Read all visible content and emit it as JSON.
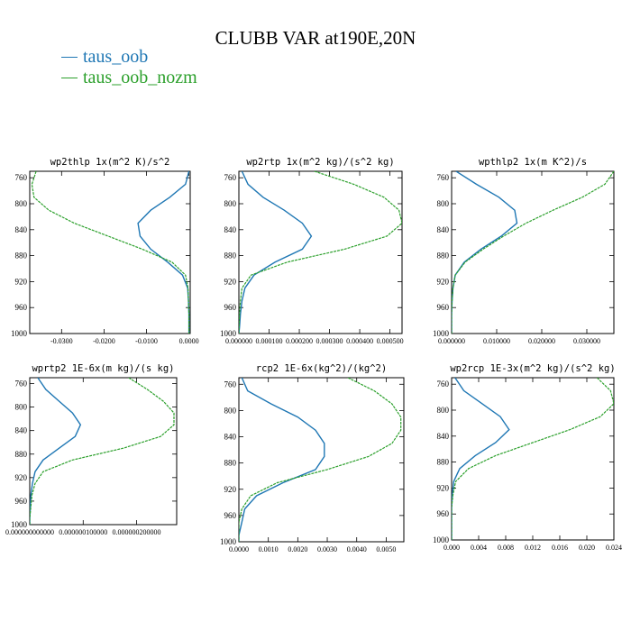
{
  "title": "CLUBB VAR at190E,20N",
  "legend": [
    {
      "label": "taus_oob",
      "color": "#1f77b4"
    },
    {
      "label": "taus_oob_nozm",
      "color": "#2ca02c"
    }
  ],
  "chart_data": [
    {
      "type": "line",
      "title": "wp2thlp   1x(m^2 K)/s^2",
      "xlim": [
        -0.0375,
        0.0003
      ],
      "ylim": [
        1000,
        750
      ],
      "yticks": [
        "760",
        "800",
        "840",
        "880",
        "920",
        "960",
        "1000"
      ],
      "xticks": [
        -0.03,
        -0.02,
        -0.01,
        0.0
      ],
      "xtick_labels": [
        "-0.0300",
        "-0.0200",
        "-0.0100",
        "0.0000"
      ],
      "y": [
        750,
        770,
        790,
        810,
        830,
        850,
        870,
        890,
        910,
        930,
        950,
        970,
        990,
        1000
      ],
      "series": [
        {
          "name": "taus_oob",
          "color": "#1f77b4",
          "values": [
            0.0,
            -0.0008,
            -0.0045,
            -0.009,
            -0.012,
            -0.0115,
            -0.009,
            -0.005,
            -0.0015,
            -0.0003,
            -0.0001,
            0.0,
            0.0,
            0.0
          ]
        },
        {
          "name": "taus_oob_nozm",
          "color": "#2ca02c",
          "values": [
            -0.036,
            -0.037,
            -0.0365,
            -0.033,
            -0.027,
            -0.019,
            -0.011,
            -0.004,
            -0.0008,
            -0.0002,
            -0.0001,
            0.0,
            0.0,
            0.0
          ]
        }
      ]
    },
    {
      "type": "line",
      "title": "wp2rtp  1x(m^2 kg)/(s^2 kg)",
      "xlim": [
        0,
        0.00054
      ],
      "ylim": [
        1000,
        750
      ],
      "yticks": [
        "760",
        "800",
        "840",
        "880",
        "920",
        "960",
        "1000"
      ],
      "xticks": [
        0,
        0.0001,
        0.0002,
        0.0003,
        0.0004,
        0.0005
      ],
      "xtick_labels": [
        "0.000000",
        "0.000100",
        "0.000200",
        "0.000300",
        "0.000400",
        "0.000500"
      ],
      "y": [
        750,
        770,
        790,
        810,
        830,
        850,
        870,
        890,
        910,
        930,
        950,
        970,
        990,
        1000
      ],
      "series": [
        {
          "name": "taus_oob",
          "color": "#1f77b4",
          "values": [
            1e-05,
            3e-05,
            8e-05,
            0.00015,
            0.00021,
            0.00024,
            0.00021,
            0.00012,
            5e-05,
            2e-05,
            1e-05,
            5e-06,
            2e-06,
            0.0
          ]
        },
        {
          "name": "taus_oob_nozm",
          "color": "#2ca02c",
          "values": [
            0.00025,
            0.00038,
            0.00048,
            0.00053,
            0.00054,
            0.00049,
            0.00035,
            0.00016,
            4e-05,
            1e-05,
            5e-06,
            2e-06,
            1e-06,
            0.0
          ]
        }
      ]
    },
    {
      "type": "line",
      "title": "wpthlp2  1x(m K^2)/s",
      "xlim": [
        0,
        0.036
      ],
      "ylim": [
        1000,
        750
      ],
      "yticks": [
        "760",
        "800",
        "840",
        "880",
        "920",
        "960",
        "1000"
      ],
      "xticks": [
        0,
        0.01,
        0.02,
        0.03
      ],
      "xtick_labels": [
        "0.000000",
        "0.010000",
        "0.020000",
        "0.030000"
      ],
      "y": [
        750,
        770,
        790,
        810,
        830,
        850,
        870,
        890,
        910,
        930,
        950,
        970,
        990,
        1000
      ],
      "series": [
        {
          "name": "taus_oob",
          "color": "#1f77b4",
          "values": [
            0.001,
            0.0055,
            0.0105,
            0.014,
            0.0145,
            0.011,
            0.0065,
            0.0028,
            0.0008,
            0.0003,
            0.0001,
            0.0,
            0.0,
            0.0
          ]
        },
        {
          "name": "taus_oob_nozm",
          "color": "#2ca02c",
          "values": [
            0.036,
            0.034,
            0.029,
            0.0225,
            0.0165,
            0.0115,
            0.007,
            0.003,
            0.0008,
            0.0003,
            0.0001,
            0.0,
            0.0,
            0.0
          ]
        }
      ]
    },
    {
      "type": "line",
      "title": "wprtp2  1E-6x(m kg)/(s kg)",
      "xlim": [
        0,
        2.75e-07
      ],
      "ylim": [
        1000,
        750
      ],
      "yticks": [
        "760",
        "800",
        "840",
        "880",
        "920",
        "960",
        "1000"
      ],
      "xticks": [
        0,
        1e-07,
        2e-07
      ],
      "xtick_labels": [
        "0.000000000000",
        "0.000000100000",
        "0.000000200000"
      ],
      "y": [
        750,
        770,
        790,
        810,
        830,
        850,
        870,
        890,
        910,
        930,
        950,
        970,
        990,
        1000
      ],
      "series": [
        {
          "name": "taus_oob",
          "color": "#1f77b4",
          "values": [
            1.5e-08,
            3e-08,
            5.5e-08,
            8e-08,
            9.5e-08,
            8.5e-08,
            5.5e-08,
            2.5e-08,
            1e-08,
            5e-09,
            2e-09,
            1e-09,
            0.0,
            0.0
          ]
        },
        {
          "name": "taus_oob_nozm",
          "color": "#2ca02c",
          "values": [
            1.85e-07,
            2.2e-07,
            2.5e-07,
            2.7e-07,
            2.7e-07,
            2.45e-07,
            1.75e-07,
            8e-08,
            2.5e-08,
            1e-08,
            4e-09,
            2e-09,
            0.0,
            0.0
          ]
        }
      ]
    },
    {
      "type": "line",
      "title": "rcp2  1E-6x(kg^2)/(kg^2)",
      "xlim": [
        0,
        0.0056
      ],
      "ylim": [
        1000,
        750
      ],
      "yticks": [
        "760",
        "800",
        "840",
        "880",
        "920",
        "960",
        "1000"
      ],
      "xticks": [
        0,
        0.001,
        0.002,
        0.003,
        0.004,
        0.005
      ],
      "xtick_labels": [
        "0.0000",
        "0.0010",
        "0.0020",
        "0.0030",
        "0.0040",
        "0.0050"
      ],
      "y": [
        750,
        770,
        790,
        810,
        830,
        850,
        870,
        890,
        910,
        930,
        950,
        970,
        990,
        1000
      ],
      "series": [
        {
          "name": "taus_oob",
          "color": "#1f77b4",
          "values": [
            0.0001,
            0.0003,
            0.0011,
            0.002,
            0.0026,
            0.0029,
            0.0029,
            0.0026,
            0.0015,
            0.0006,
            0.0002,
            0.0001,
            0.0,
            0.0
          ]
        },
        {
          "name": "taus_oob_nozm",
          "color": "#2ca02c",
          "values": [
            0.0037,
            0.0046,
            0.0052,
            0.0055,
            0.0055,
            0.0052,
            0.0044,
            0.003,
            0.0013,
            0.0004,
            0.0001,
            0.0,
            0.0,
            0.0
          ]
        }
      ]
    },
    {
      "type": "line",
      "title": "wp2rcp  1E-3x(m^2 kg)/(s^2 kg)",
      "xlim": [
        0,
        0.024
      ],
      "ylim": [
        1000,
        750
      ],
      "yticks": [
        "760",
        "800",
        "840",
        "880",
        "920",
        "960",
        "1000"
      ],
      "xticks": [
        0,
        0.004,
        0.008,
        0.012,
        0.016,
        0.02,
        0.024
      ],
      "xtick_labels": [
        "0.000",
        "0.004",
        "0.008",
        "0.012",
        "0.016",
        "0.020",
        "0.024"
      ],
      "y": [
        750,
        770,
        790,
        810,
        830,
        850,
        870,
        890,
        910,
        930,
        950,
        970,
        990,
        1000
      ],
      "series": [
        {
          "name": "taus_oob",
          "color": "#1f77b4",
          "values": [
            0.0005,
            0.0018,
            0.0045,
            0.0072,
            0.0085,
            0.0065,
            0.0035,
            0.0012,
            0.0003,
            0.0001,
            0.0,
            0.0,
            0.0,
            0.0
          ]
        },
        {
          "name": "taus_oob_nozm",
          "color": "#2ca02c",
          "values": [
            0.0215,
            0.0235,
            0.024,
            0.022,
            0.0175,
            0.012,
            0.0065,
            0.0025,
            0.0006,
            0.0002,
            0.0,
            0.0,
            0.0,
            0.0
          ]
        }
      ]
    }
  ]
}
